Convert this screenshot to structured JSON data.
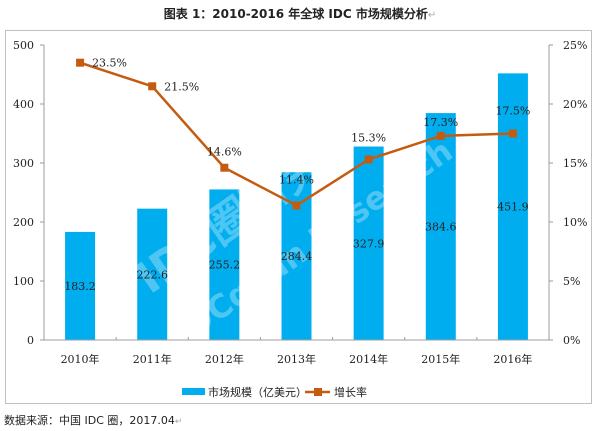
{
  "header": {
    "title": "图表 1：2010-2016 年全球 IDC 市场规模分析",
    "paragraph_mark": "↵"
  },
  "footer": {
    "source": "数据来源：中国 IDC 圈，2017.04",
    "paragraph_mark": "↵"
  },
  "colors": {
    "bar": "#00AEEF",
    "line": "#C55A11",
    "axis": "#9e9e9e",
    "text": "#222222"
  },
  "watermark": {
    "line1": "IDC圈研究中心",
    "line2": "IDCquan Research"
  },
  "chart_data": {
    "type": "bar",
    "title": "图表 1：2010-2016 年全球 IDC 市场规模分析",
    "categories": [
      "2010年",
      "2011年",
      "2012年",
      "2013年",
      "2014年",
      "2015年",
      "2016年"
    ],
    "series": [
      {
        "name": "市场规模（亿美元）",
        "type": "bar",
        "axis": "left",
        "values": [
          183.2,
          222.6,
          255.2,
          284.4,
          327.9,
          384.6,
          451.9
        ],
        "labels": [
          "183.2",
          "222.6",
          "255.2",
          "284.4",
          "327.9",
          "384.6",
          "451.9"
        ]
      },
      {
        "name": "增长率",
        "type": "line",
        "axis": "right",
        "values": [
          23.5,
          21.5,
          14.6,
          11.4,
          15.3,
          17.3,
          17.5
        ],
        "labels": [
          "23.5%",
          "21.5%",
          "14.6%",
          "11.4%",
          "15.3%",
          "17.3%",
          "17.5%"
        ]
      }
    ],
    "y_left": {
      "min": 0,
      "max": 500,
      "ticks": [
        0,
        100,
        200,
        300,
        400,
        500
      ],
      "tick_labels": [
        "0",
        "100",
        "200",
        "300",
        "400",
        "500"
      ]
    },
    "y_right": {
      "min": 0,
      "max": 25,
      "ticks": [
        0,
        5,
        10,
        15,
        20,
        25
      ],
      "tick_labels": [
        "0%",
        "5%",
        "10%",
        "15%",
        "20%",
        "25%"
      ]
    },
    "xlabel": "",
    "ylabel": "",
    "grid": false,
    "legend": {
      "position": "bottom",
      "entries": [
        "市场规模（亿美元）",
        "增长率"
      ]
    }
  }
}
